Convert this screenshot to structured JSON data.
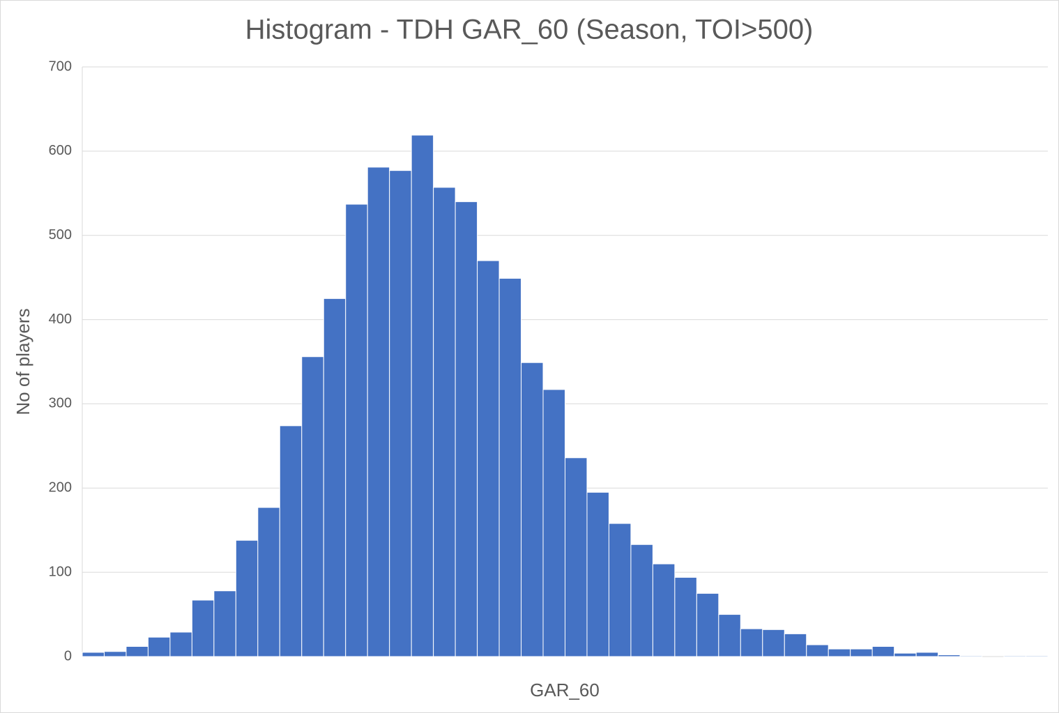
{
  "chart_data": {
    "type": "bar",
    "title": "Histogram - TDH GAR_60 (Season, TOI>500)",
    "x_label": "GAR_60",
    "y_label": "No of players",
    "categories": [
      null,
      null,
      null,
      null,
      null,
      null,
      null,
      null,
      null,
      null,
      null,
      null,
      null,
      null,
      null,
      null,
      null,
      null,
      null,
      null,
      null,
      null,
      null,
      null,
      null,
      null,
      null,
      null,
      null,
      null,
      null,
      null,
      null,
      null,
      null,
      null,
      null,
      null,
      null,
      null,
      null,
      null,
      null,
      null
    ],
    "values": [
      5,
      6,
      12,
      23,
      29,
      67,
      78,
      138,
      177,
      274,
      356,
      425,
      537,
      581,
      577,
      619,
      557,
      540,
      470,
      449,
      349,
      317,
      236,
      195,
      158,
      133,
      110,
      94,
      75,
      50,
      33,
      32,
      27,
      14,
      9,
      9,
      12,
      4,
      5,
      2,
      1,
      0,
      1,
      1
    ],
    "color": "#4472c4",
    "ylim": [
      0,
      700
    ],
    "yticks": [
      0,
      100,
      200,
      300,
      400,
      500,
      600,
      700
    ],
    "grid": true
  }
}
